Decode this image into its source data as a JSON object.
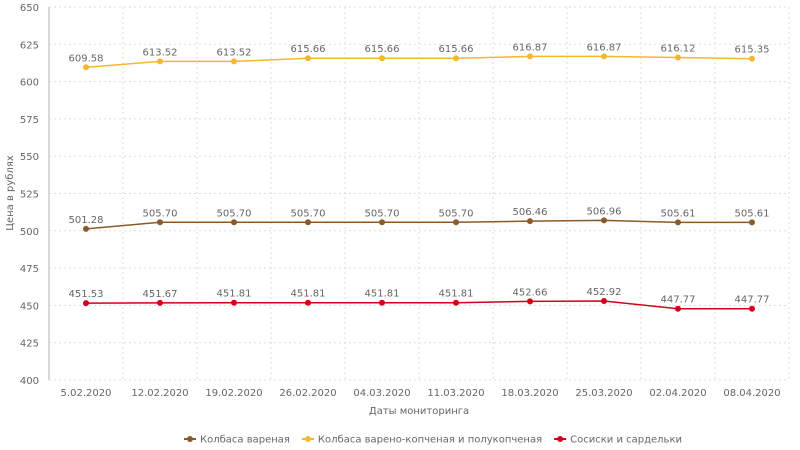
{
  "chart_data": {
    "type": "line",
    "xlabel": "Даты мониторинга",
    "ylabel": "Цена в рублях",
    "ylim": [
      400,
      650
    ],
    "yticks": [
      400,
      425,
      450,
      475,
      500,
      525,
      550,
      575,
      600,
      625,
      650
    ],
    "grid": true,
    "legend_position": "bottom",
    "categories": [
      "5.02.2020",
      "12.02.2020",
      "19.02.2020",
      "26.02.2020",
      "04.03.2020",
      "11.03.2020",
      "18.03.2020",
      "25.03.2020",
      "02.04.2020",
      "08.04.2020"
    ],
    "series": [
      {
        "name": "Колбаса вареная",
        "color": "#8b5a2b",
        "values": [
          501.28,
          505.7,
          505.7,
          505.7,
          505.7,
          505.7,
          506.46,
          506.96,
          505.61,
          505.61
        ]
      },
      {
        "name": "Колбаса варено-копченая и полукопченая",
        "color": "#f5b731",
        "values": [
          609.58,
          613.52,
          613.52,
          615.66,
          615.66,
          615.66,
          616.87,
          616.87,
          616.12,
          615.35
        ]
      },
      {
        "name": "Сосиски и сардельки",
        "color": "#d0021b",
        "values": [
          451.53,
          451.67,
          451.81,
          451.81,
          451.81,
          451.81,
          452.66,
          452.92,
          447.77,
          447.77
        ]
      }
    ]
  }
}
